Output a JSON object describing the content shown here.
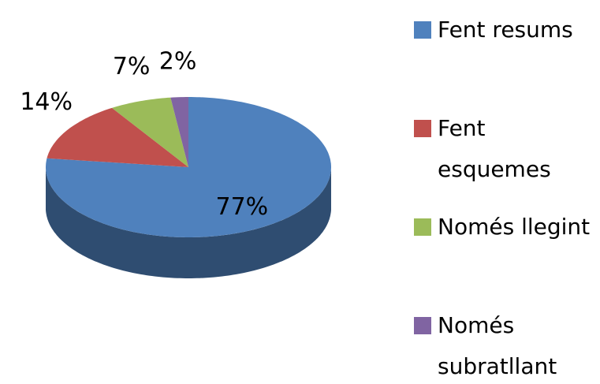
{
  "chart_data": {
    "type": "pie",
    "categories": [
      "Fent resums",
      "Fent esquemes",
      "Només llegint",
      "Només subratllant"
    ],
    "values": [
      77,
      14,
      7,
      2
    ],
    "value_labels": [
      "77%",
      "14%",
      "7%",
      "2%"
    ],
    "colors": [
      "#4f81bd",
      "#c0504d",
      "#9bbb59",
      "#8064a2"
    ],
    "legend": "right"
  }
}
